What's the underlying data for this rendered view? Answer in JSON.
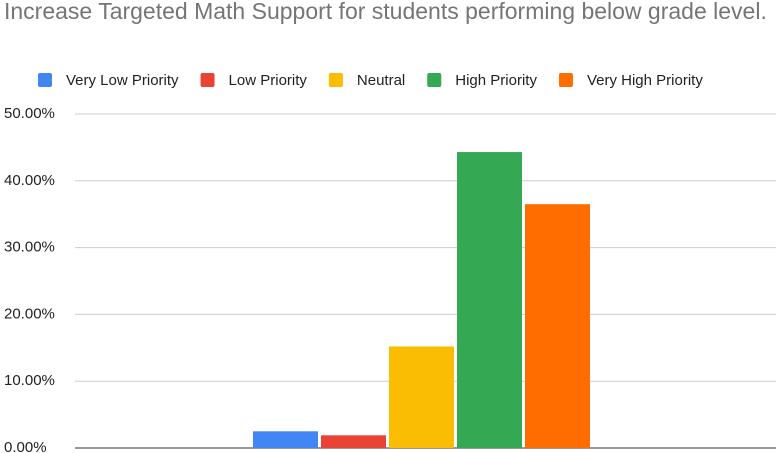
{
  "chart_data": {
    "type": "bar",
    "title": "Increase Targeted Math Support for students performing below grade level.",
    "categories": [
      null
    ],
    "series": [
      {
        "name": "Very Low Priority",
        "color": "#4285f4",
        "values": [
          2.5
        ]
      },
      {
        "name": "Low Priority",
        "color": "#ea4335",
        "values": [
          1.9
        ]
      },
      {
        "name": "Neutral",
        "color": "#fbbc04",
        "values": [
          15.2
        ]
      },
      {
        "name": "High Priority",
        "color": "#34a853",
        "values": [
          44.3
        ]
      },
      {
        "name": "Very High Priority",
        "color": "#ff6d01",
        "values": [
          36.5
        ]
      }
    ],
    "ylim": [
      0,
      50
    ],
    "yticks": [
      {
        "value": 0,
        "label": "0.00%"
      },
      {
        "value": 10,
        "label": "10.00%"
      },
      {
        "value": 20,
        "label": "20.00%"
      },
      {
        "value": 30,
        "label": "30.00%"
      },
      {
        "value": 40,
        "label": "40.00%"
      },
      {
        "value": 50,
        "label": "50.00%"
      }
    ],
    "grid": true,
    "legend": "top"
  }
}
